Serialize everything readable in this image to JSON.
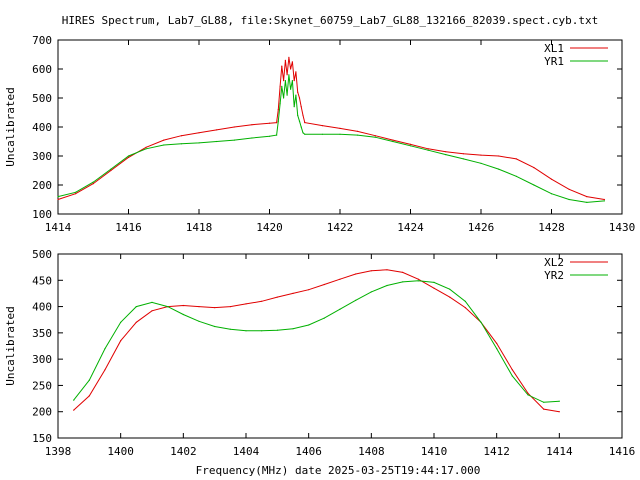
{
  "title": "HIRES Spectrum, Lab7_GL88, file:Skynet_60759_Lab7_GL88_132166_82039.spect.cyb.txt",
  "xlabel": "Frequency(MHz) date 2025-03-25T19:44:17.000",
  "colors": {
    "red": "#e00000",
    "green": "#00b000",
    "axes": "#000000"
  },
  "chart_data": [
    {
      "type": "line",
      "ylabel": "Uncalibrated",
      "xlim": [
        1414,
        1430
      ],
      "ylim": [
        100,
        700
      ],
      "x_ticks": [
        1414,
        1416,
        1418,
        1420,
        1422,
        1424,
        1426,
        1428,
        1430
      ],
      "y_ticks": [
        100,
        200,
        300,
        400,
        500,
        600,
        700
      ],
      "legend": "top-right",
      "grid": false,
      "series": [
        {
          "name": "XL1",
          "color": "#e00000",
          "x": [
            1414.0,
            1414.5,
            1415.0,
            1415.5,
            1416.0,
            1416.5,
            1417.0,
            1417.5,
            1418.0,
            1418.5,
            1419.0,
            1419.5,
            1420.0,
            1420.2,
            1420.25,
            1420.3,
            1420.35,
            1420.4,
            1420.45,
            1420.5,
            1420.55,
            1420.6,
            1420.65,
            1420.7,
            1420.75,
            1420.8,
            1420.85,
            1420.9,
            1420.95,
            1421.0,
            1421.5,
            1422.0,
            1422.5,
            1423.0,
            1423.5,
            1424.0,
            1424.5,
            1425.0,
            1425.5,
            1426.0,
            1426.5,
            1427.0,
            1427.5,
            1428.0,
            1428.5,
            1429.0,
            1429.5
          ],
          "y": [
            150,
            170,
            205,
            250,
            295,
            330,
            355,
            370,
            380,
            390,
            400,
            408,
            413,
            415,
            460,
            540,
            610,
            560,
            630,
            580,
            640,
            600,
            625,
            560,
            590,
            520,
            500,
            470,
            440,
            415,
            405,
            395,
            385,
            370,
            355,
            340,
            325,
            315,
            308,
            303,
            300,
            290,
            260,
            220,
            185,
            160,
            150
          ]
        },
        {
          "name": "YR1",
          "color": "#00b000",
          "x": [
            1414.0,
            1414.5,
            1415.0,
            1415.5,
            1416.0,
            1416.5,
            1417.0,
            1417.5,
            1418.0,
            1418.5,
            1419.0,
            1419.5,
            1420.0,
            1420.2,
            1420.25,
            1420.3,
            1420.35,
            1420.4,
            1420.45,
            1420.5,
            1420.55,
            1420.6,
            1420.65,
            1420.7,
            1420.75,
            1420.8,
            1420.85,
            1420.9,
            1420.95,
            1421.0,
            1421.5,
            1422.0,
            1422.5,
            1423.0,
            1423.5,
            1424.0,
            1424.5,
            1425.0,
            1425.5,
            1426.0,
            1426.5,
            1427.0,
            1427.5,
            1428.0,
            1428.5,
            1429.0,
            1429.5
          ],
          "y": [
            160,
            175,
            210,
            255,
            300,
            325,
            338,
            342,
            345,
            350,
            355,
            362,
            368,
            372,
            420,
            480,
            540,
            500,
            560,
            510,
            580,
            530,
            560,
            470,
            510,
            440,
            420,
            400,
            380,
            375,
            375,
            375,
            372,
            365,
            350,
            335,
            320,
            305,
            290,
            275,
            255,
            230,
            200,
            170,
            150,
            140,
            145
          ]
        }
      ]
    },
    {
      "type": "line",
      "ylabel": "Uncalibrated",
      "xlim": [
        1398,
        1416
      ],
      "ylim": [
        150,
        500
      ],
      "x_ticks": [
        1398,
        1400,
        1402,
        1404,
        1406,
        1408,
        1410,
        1412,
        1414,
        1416
      ],
      "y_ticks": [
        150,
        200,
        250,
        300,
        350,
        400,
        450,
        500
      ],
      "legend": "top-right",
      "grid": false,
      "series": [
        {
          "name": "XL2",
          "color": "#e00000",
          "x": [
            1398.5,
            1399.0,
            1399.5,
            1400.0,
            1400.5,
            1401.0,
            1401.5,
            1402.0,
            1402.5,
            1403.0,
            1403.5,
            1404.0,
            1404.5,
            1405.0,
            1405.5,
            1406.0,
            1406.5,
            1407.0,
            1407.5,
            1408.0,
            1408.5,
            1409.0,
            1409.5,
            1410.0,
            1410.5,
            1411.0,
            1411.5,
            1412.0,
            1412.5,
            1413.0,
            1413.5,
            1414.0
          ],
          "y": [
            203,
            230,
            280,
            335,
            370,
            392,
            400,
            402,
            400,
            398,
            400,
            405,
            410,
            418,
            425,
            432,
            442,
            452,
            462,
            468,
            470,
            465,
            452,
            435,
            418,
            398,
            370,
            330,
            280,
            235,
            205,
            200
          ]
        },
        {
          "name": "YR2",
          "color": "#00b000",
          "x": [
            1398.5,
            1399.0,
            1399.5,
            1400.0,
            1400.5,
            1401.0,
            1401.5,
            1402.0,
            1402.5,
            1403.0,
            1403.5,
            1404.0,
            1404.5,
            1405.0,
            1405.5,
            1406.0,
            1406.5,
            1407.0,
            1407.5,
            1408.0,
            1408.5,
            1409.0,
            1409.5,
            1410.0,
            1410.5,
            1411.0,
            1411.5,
            1412.0,
            1412.5,
            1413.0,
            1413.5,
            1414.0
          ],
          "y": [
            222,
            260,
            320,
            370,
            400,
            408,
            400,
            385,
            372,
            362,
            357,
            354,
            354,
            355,
            358,
            365,
            378,
            395,
            412,
            428,
            440,
            447,
            449,
            446,
            433,
            410,
            370,
            320,
            268,
            232,
            218,
            220
          ]
        }
      ]
    }
  ]
}
